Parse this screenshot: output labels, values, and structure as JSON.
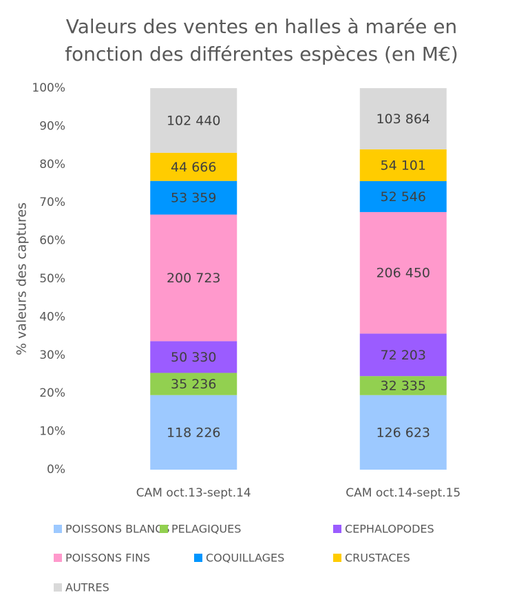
{
  "chart_data": {
    "type": "bar",
    "stacking": "percent",
    "title": [
      "Valeurs des ventes en halles à marée en",
      "fonction des différentes espèces (en M€)"
    ],
    "y_label": "% valeurs des captures",
    "categories": [
      "CAM oct.13-sept.14",
      "CAM oct.14-sept.15"
    ],
    "ylim": [
      0,
      100
    ],
    "yticks": [
      {
        "value": 0,
        "label": "0%"
      },
      {
        "value": 10,
        "label": "10%"
      },
      {
        "value": 20,
        "label": "20%"
      },
      {
        "value": 30,
        "label": "30%"
      },
      {
        "value": 40,
        "label": "40%"
      },
      {
        "value": 50,
        "label": "50%"
      },
      {
        "value": 60,
        "label": "60%"
      },
      {
        "value": 70,
        "label": "70%"
      },
      {
        "value": 80,
        "label": "80%"
      },
      {
        "value": 90,
        "label": "90%"
      },
      {
        "value": 100,
        "label": "100%"
      }
    ],
    "series": [
      {
        "name": "POISSONS BLANCS",
        "color": "#9dc9ff",
        "values": [
          118226,
          126623
        ],
        "value_labels": [
          "118 226",
          "126 623"
        ]
      },
      {
        "name": "PELAGIQUES",
        "color": "#92d050",
        "values": [
          35236,
          32335
        ],
        "value_labels": [
          "35 236",
          "32 335"
        ]
      },
      {
        "name": "CEPHALOPODES",
        "color": "#9b5cff",
        "values": [
          50330,
          72203
        ],
        "value_labels": [
          "50 330",
          "72 203"
        ]
      },
      {
        "name": "POISSONS FINS",
        "color": "#ff99cc",
        "values": [
          200723,
          206450
        ],
        "value_labels": [
          "200 723",
          "206 450"
        ]
      },
      {
        "name": "COQUILLAGES",
        "color": "#0096ff",
        "values": [
          53359,
          52546
        ],
        "value_labels": [
          "53 359",
          "52 546"
        ]
      },
      {
        "name": "CRUSTACES",
        "color": "#ffcc00",
        "values": [
          44666,
          54101
        ],
        "value_labels": [
          "44 666",
          "54 101"
        ]
      },
      {
        "name": "AUTRES",
        "color": "#d9d9d9",
        "values": [
          102440,
          103864
        ],
        "value_labels": [
          "102 440",
          "103 864"
        ]
      }
    ]
  }
}
